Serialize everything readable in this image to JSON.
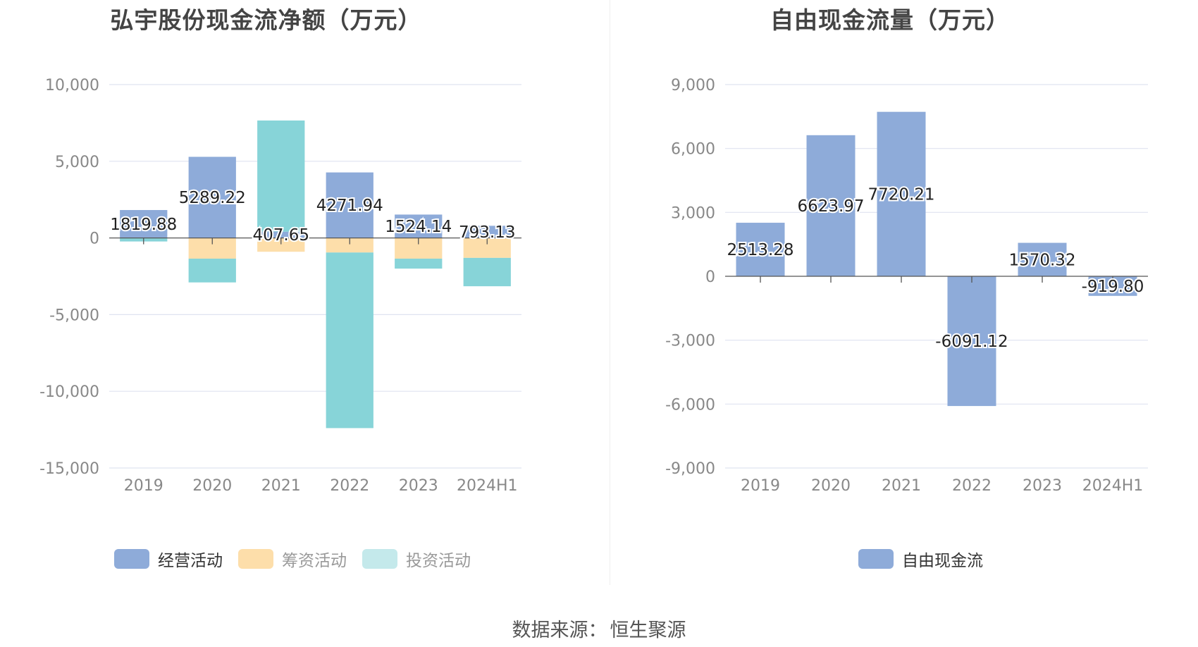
{
  "source": {
    "label": "数据来源：",
    "value": "恒生聚源"
  },
  "colors": {
    "operating": "#8eabd9",
    "financing": "#fddeaa",
    "investing": "#87d4d8",
    "free_cf": "#8eabd9",
    "grid": "#dfe3f0",
    "axis_text": "#888888",
    "zero_line": "#555555"
  },
  "chart_data": [
    {
      "type": "bar",
      "stacked": true,
      "title": "弘宇股份现金流净额（万元）",
      "categories": [
        "2019",
        "2020",
        "2021",
        "2022",
        "2023",
        "2024H1"
      ],
      "ylim": [
        -15000,
        10000
      ],
      "yticks": [
        10000,
        5000,
        0,
        -5000,
        -10000,
        -15000
      ],
      "ytick_labels": [
        "10,000",
        "5,000",
        "0",
        "-5,000",
        "-10,000",
        "-15,000"
      ],
      "grid": true,
      "legend_position": "bottom",
      "series": [
        {
          "name": "经营活动",
          "values": [
            1819.88,
            5289.22,
            407.65,
            4271.94,
            1524.14,
            793.13
          ]
        },
        {
          "name": "筹资活动",
          "values": [
            0,
            -1350,
            -900,
            -950,
            -1350,
            -1300
          ]
        },
        {
          "name": "投资活动",
          "values": [
            -230,
            -1550,
            7250,
            -11450,
            -650,
            -1850
          ]
        }
      ],
      "data_labels": [
        "1819.88",
        "5289.22",
        "407.65",
        "4271.94",
        "1524.14",
        "793.13"
      ]
    },
    {
      "type": "bar",
      "title": "自由现金流量（万元）",
      "categories": [
        "2019",
        "2020",
        "2021",
        "2022",
        "2023",
        "2024H1"
      ],
      "ylim": [
        -9000,
        9000
      ],
      "yticks": [
        9000,
        6000,
        3000,
        0,
        -3000,
        -6000,
        -9000
      ],
      "ytick_labels": [
        "9,000",
        "6,000",
        "3,000",
        "0",
        "-3,000",
        "-6,000",
        "-9,000"
      ],
      "grid": true,
      "legend_position": "bottom",
      "series": [
        {
          "name": "自由现金流",
          "values": [
            2513.28,
            6623.97,
            7720.21,
            -6091.12,
            1570.32,
            -919.8
          ]
        }
      ],
      "data_labels": [
        "2513.28",
        "6623.97",
        "7720.21",
        "-6091.12",
        "1570.32",
        "-919.80"
      ]
    }
  ]
}
